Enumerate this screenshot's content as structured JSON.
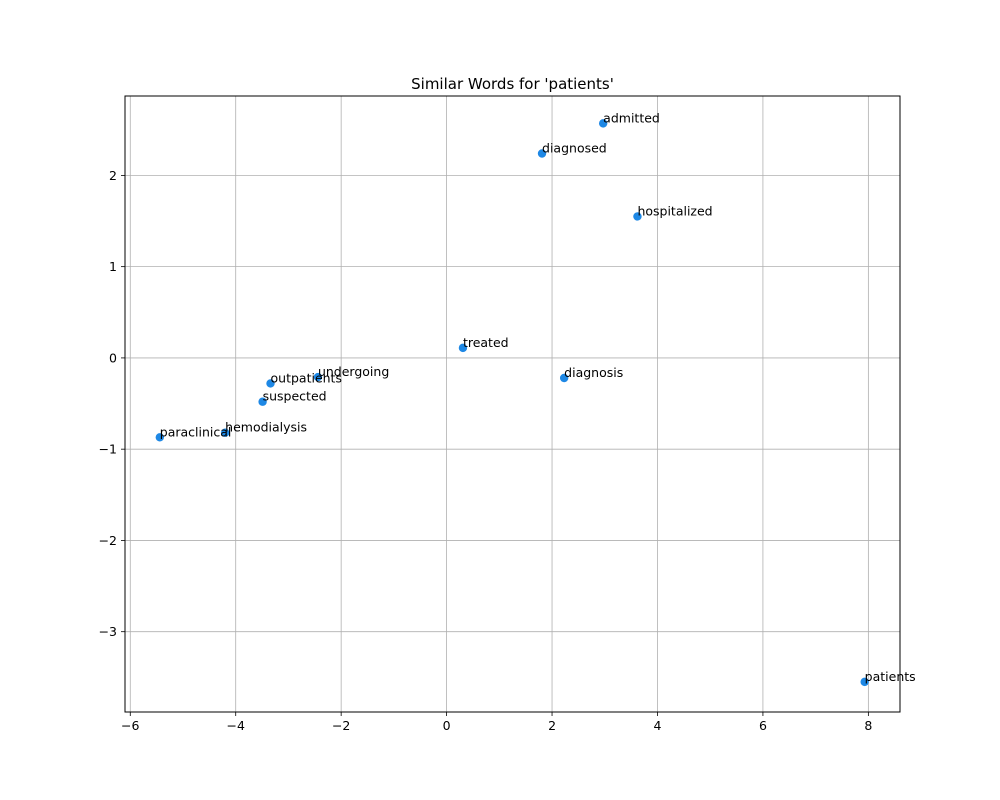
{
  "chart_data": {
    "type": "scatter",
    "title": "Similar Words for 'patients'",
    "xlabel": "",
    "ylabel": "",
    "xlim": [
      -6.1,
      8.6
    ],
    "ylim": [
      -3.88,
      2.87
    ],
    "xticks": [
      -6,
      -4,
      -2,
      0,
      2,
      4,
      6,
      8
    ],
    "yticks": [
      -3,
      -2,
      -1,
      0,
      1,
      2
    ],
    "grid": true,
    "marker_color": "#1e88e5",
    "points": [
      {
        "label": "admitted",
        "x": 2.97,
        "y": 2.57
      },
      {
        "label": "diagnosed",
        "x": 1.81,
        "y": 2.24
      },
      {
        "label": "hospitalized",
        "x": 3.62,
        "y": 1.55
      },
      {
        "label": "treated",
        "x": 0.31,
        "y": 0.11
      },
      {
        "label": "diagnosis",
        "x": 2.23,
        "y": -0.22
      },
      {
        "label": "undergoing",
        "x": -2.44,
        "y": -0.21
      },
      {
        "label": "outpatients",
        "x": -3.34,
        "y": -0.28
      },
      {
        "label": "suspected",
        "x": -3.49,
        "y": -0.48
      },
      {
        "label": "hemodialysis",
        "x": -4.2,
        "y": -0.82
      },
      {
        "label": "paraclinical",
        "x": -5.44,
        "y": -0.87
      },
      {
        "label": "patients",
        "x": 7.93,
        "y": -3.55
      }
    ]
  }
}
